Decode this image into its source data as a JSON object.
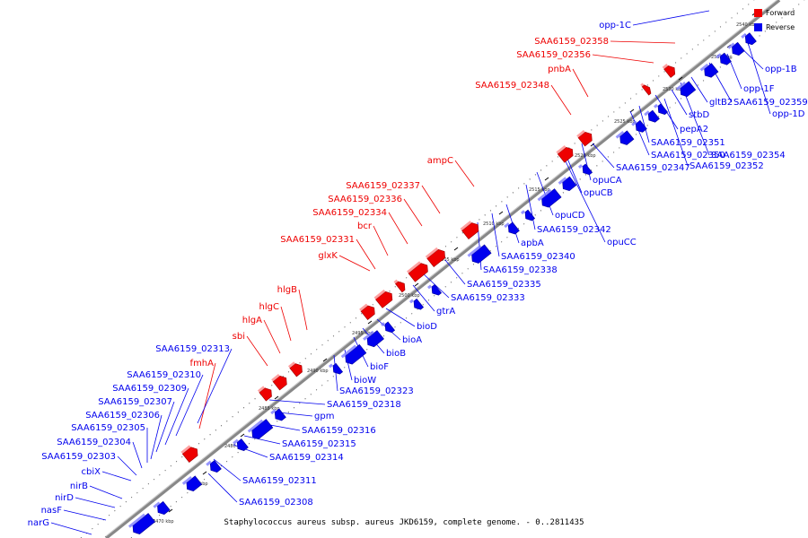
{
  "colors": {
    "forward": "#ee0000",
    "reverse": "#0000ee",
    "forward_dark": "#9a0000",
    "reverse_dark": "#00009a"
  },
  "legend": {
    "forward": "Forward",
    "reverse": "Reverse"
  },
  "caption": "Staphylococcus aureus subsp. aureus JKD6159, complete genome. - 0..2811435",
  "ticks": [
    "2470 kbp",
    "2475 kbp",
    "2480 kbp",
    "2485 kbp",
    "2490 kbp",
    "2495 kbp",
    "2500 kbp",
    "2505 kbp",
    "2510 kbp",
    "2515 kbp",
    "2520 kbp",
    "2525 kbp",
    "2530 kbp",
    "2535 kbp",
    "2540 kbp"
  ],
  "forward_labels": [
    "SAA6159_02358",
    "SAA6159_02356",
    "pnbA",
    "SAA6159_02348",
    "ampC",
    "SAA6159_02337",
    "SAA6159_02336",
    "SAA6159_02334",
    "bcr",
    "SAA6159_02331",
    "glxK",
    "hlgB",
    "hlgC",
    "hlgA",
    "sbi",
    "fmhA"
  ],
  "reverse_labels": [
    "opp-1C",
    "opp-1B",
    "opp-1F",
    "SAA6159_02359",
    "opp-1D",
    "gltB2",
    "stbD",
    "pepA2",
    "SAA6159_02351",
    "SAA6159_02350",
    "SAA6159_02354",
    "SAA6159_02347",
    "SAA6159_02352",
    "opuCA",
    "opuCB",
    "opuCD",
    "opuCC",
    "SAA6159_02342",
    "apbA",
    "SAA6159_02340",
    "SAA6159_02338",
    "SAA6159_02335",
    "SAA6159_02333",
    "gtrA",
    "bioD",
    "bioA",
    "bioB",
    "bioF",
    "bioW",
    "SAA6159_02323",
    "SAA6159_02318",
    "gpm",
    "SAA6159_02316",
    "SAA6159_02315",
    "SAA6159_02314",
    "SAA6159_02311",
    "SAA6159_02308",
    "SAA6159_02313",
    "SAA6159_02310",
    "SAA6159_02309",
    "SAA6159_02307",
    "SAA6159_02306",
    "SAA6159_02305",
    "SAA6159_02304",
    "SAA6159_02303",
    "cbiX",
    "nirB",
    "nirD",
    "nasF",
    "narG"
  ]
}
